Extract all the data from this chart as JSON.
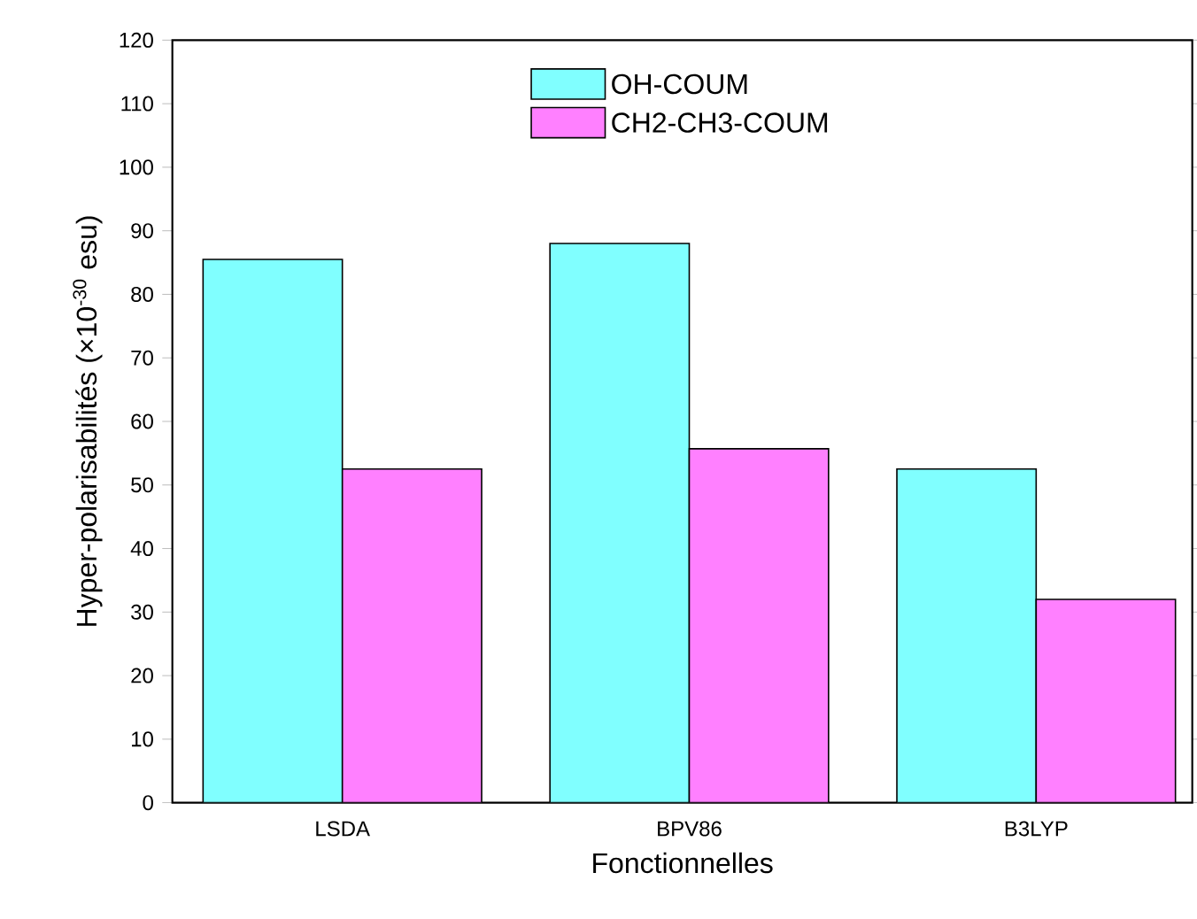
{
  "chart_data": {
    "type": "bar",
    "xlabel": "Fonctionnelles",
    "ylabel": "Hyper-polarisabilités (×10$^{-30}$ esu)",
    "categories": [
      "LSDA",
      "BPV86",
      "B3LYP"
    ],
    "series": [
      {
        "name": "OH-COUM",
        "color": "#80ffff",
        "values": [
          85.5,
          88,
          52.5
        ]
      },
      {
        "name": "CH2-CH3-COUM",
        "color": "#ff80ff",
        "values": [
          52.5,
          55.7,
          32
        ]
      }
    ],
    "ylim": [
      0,
      120
    ],
    "yticks": [
      0,
      10,
      20,
      30,
      40,
      50,
      60,
      70,
      80,
      90,
      100,
      110,
      120
    ],
    "legend": "top",
    "grid": false
  }
}
